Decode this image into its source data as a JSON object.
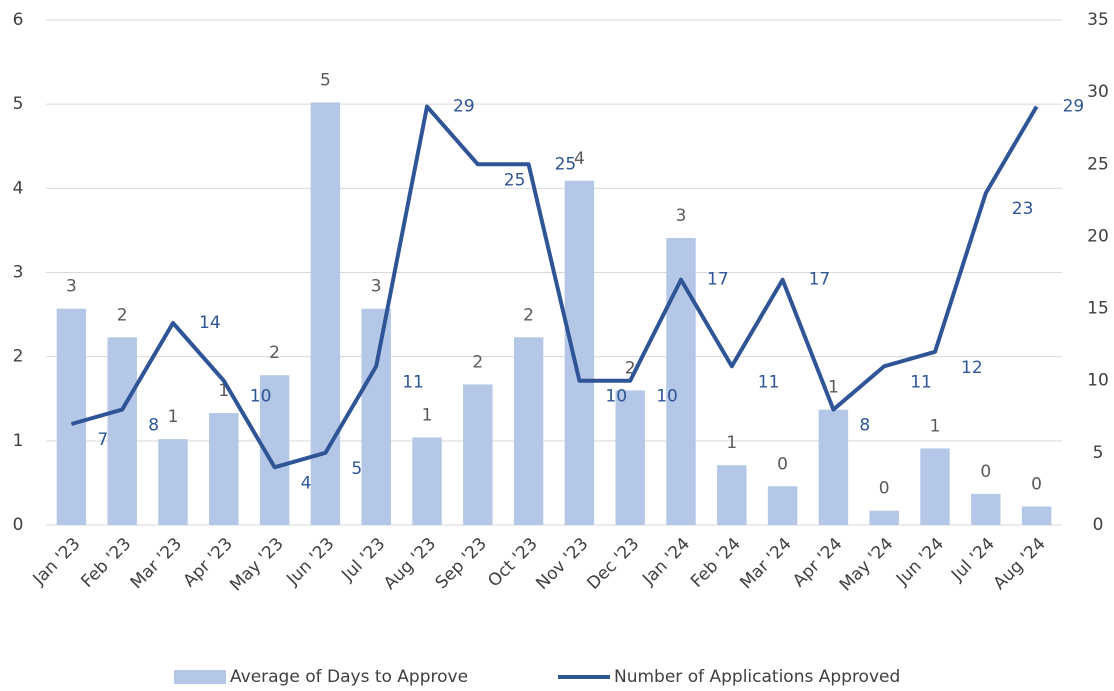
{
  "chart_data": {
    "type": "bar_line",
    "categories": [
      "Jan '23",
      "Feb '23",
      "Mar '23",
      "Apr '23",
      "May '23",
      "Jun '23",
      "Jul '23",
      "Aug '23",
      "Sep '23",
      "Oct '23",
      "Nov '23",
      "Dec '23",
      "Jan '24",
      "Feb '24",
      "Mar '24",
      "Apr '24",
      "May '24",
      "Jun '24",
      "Jul '24",
      "Aug '24"
    ],
    "series": [
      {
        "name": "Average of Days to Approve",
        "type": "bar",
        "color": "#b4c7e7",
        "values": [
          2.57,
          2.23,
          1.02,
          1.33,
          1.78,
          5.02,
          2.57,
          1.04,
          1.67,
          2.23,
          4.09,
          1.6,
          3.41,
          0.71,
          0.46,
          1.37,
          0.17,
          0.91,
          0.37,
          0.22
        ],
        "value_labels": [
          "3",
          "2",
          "1",
          "1",
          "2",
          "5",
          "3",
          "1",
          "2",
          "2",
          "4",
          "2",
          "3",
          "1",
          "0",
          "1",
          "0",
          "1",
          "0",
          "0"
        ]
      },
      {
        "name": "Number of Applications Approved",
        "type": "line",
        "color": "#2f5597",
        "axis": "y2",
        "values": [
          7,
          8,
          14,
          10,
          4,
          5,
          11,
          29,
          25,
          25,
          10,
          10,
          17,
          11,
          17,
          8,
          11,
          12,
          23,
          29
        ]
      }
    ],
    "ylim": [
      0,
      6
    ],
    "yticks": [
      0,
      1,
      2,
      3,
      4,
      5,
      6
    ],
    "y2lim": [
      0,
      35
    ],
    "y2ticks": [
      0,
      5,
      10,
      15,
      20,
      25,
      30,
      35
    ],
    "grid": true,
    "legend": "bottom"
  }
}
